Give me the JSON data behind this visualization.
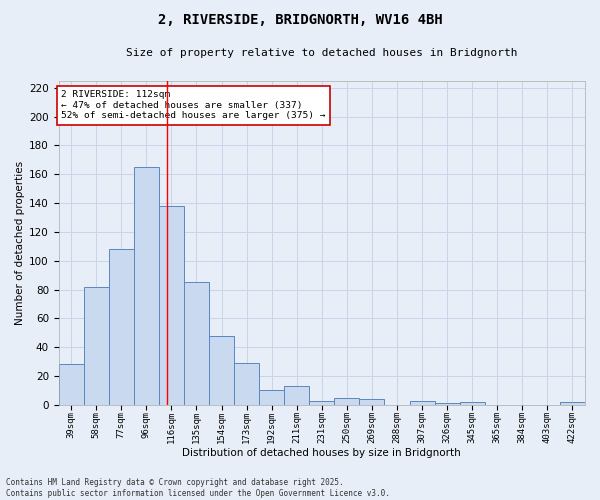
{
  "title": "2, RIVERSIDE, BRIDGNORTH, WV16 4BH",
  "subtitle": "Size of property relative to detached houses in Bridgnorth",
  "xlabel": "Distribution of detached houses by size in Bridgnorth",
  "ylabel": "Number of detached properties",
  "bar_labels": [
    "39sqm",
    "58sqm",
    "77sqm",
    "96sqm",
    "116sqm",
    "135sqm",
    "154sqm",
    "173sqm",
    "192sqm",
    "211sqm",
    "231sqm",
    "250sqm",
    "269sqm",
    "288sqm",
    "307sqm",
    "326sqm",
    "345sqm",
    "365sqm",
    "384sqm",
    "403sqm",
    "422sqm"
  ],
  "bar_values": [
    28,
    82,
    108,
    165,
    138,
    85,
    48,
    29,
    10,
    13,
    3,
    5,
    4,
    0,
    3,
    1,
    2,
    0,
    0,
    0,
    2
  ],
  "bar_color": "#c8d9f0",
  "bar_edgecolor": "#5a87c0",
  "grid_color": "#c8d4e8",
  "background_color": "#e8eef8",
  "red_line_x": 3.84,
  "annotation_text": "2 RIVERSIDE: 112sqm\n← 47% of detached houses are smaller (337)\n52% of semi-detached houses are larger (375) →",
  "annotation_box_color": "#ffffff",
  "annotation_box_edgecolor": "#cc0000",
  "footer_line1": "Contains HM Land Registry data © Crown copyright and database right 2025.",
  "footer_line2": "Contains public sector information licensed under the Open Government Licence v3.0.",
  "ylim": [
    0,
    225
  ],
  "yticks": [
    0,
    20,
    40,
    60,
    80,
    100,
    120,
    140,
    160,
    180,
    200,
    220
  ]
}
